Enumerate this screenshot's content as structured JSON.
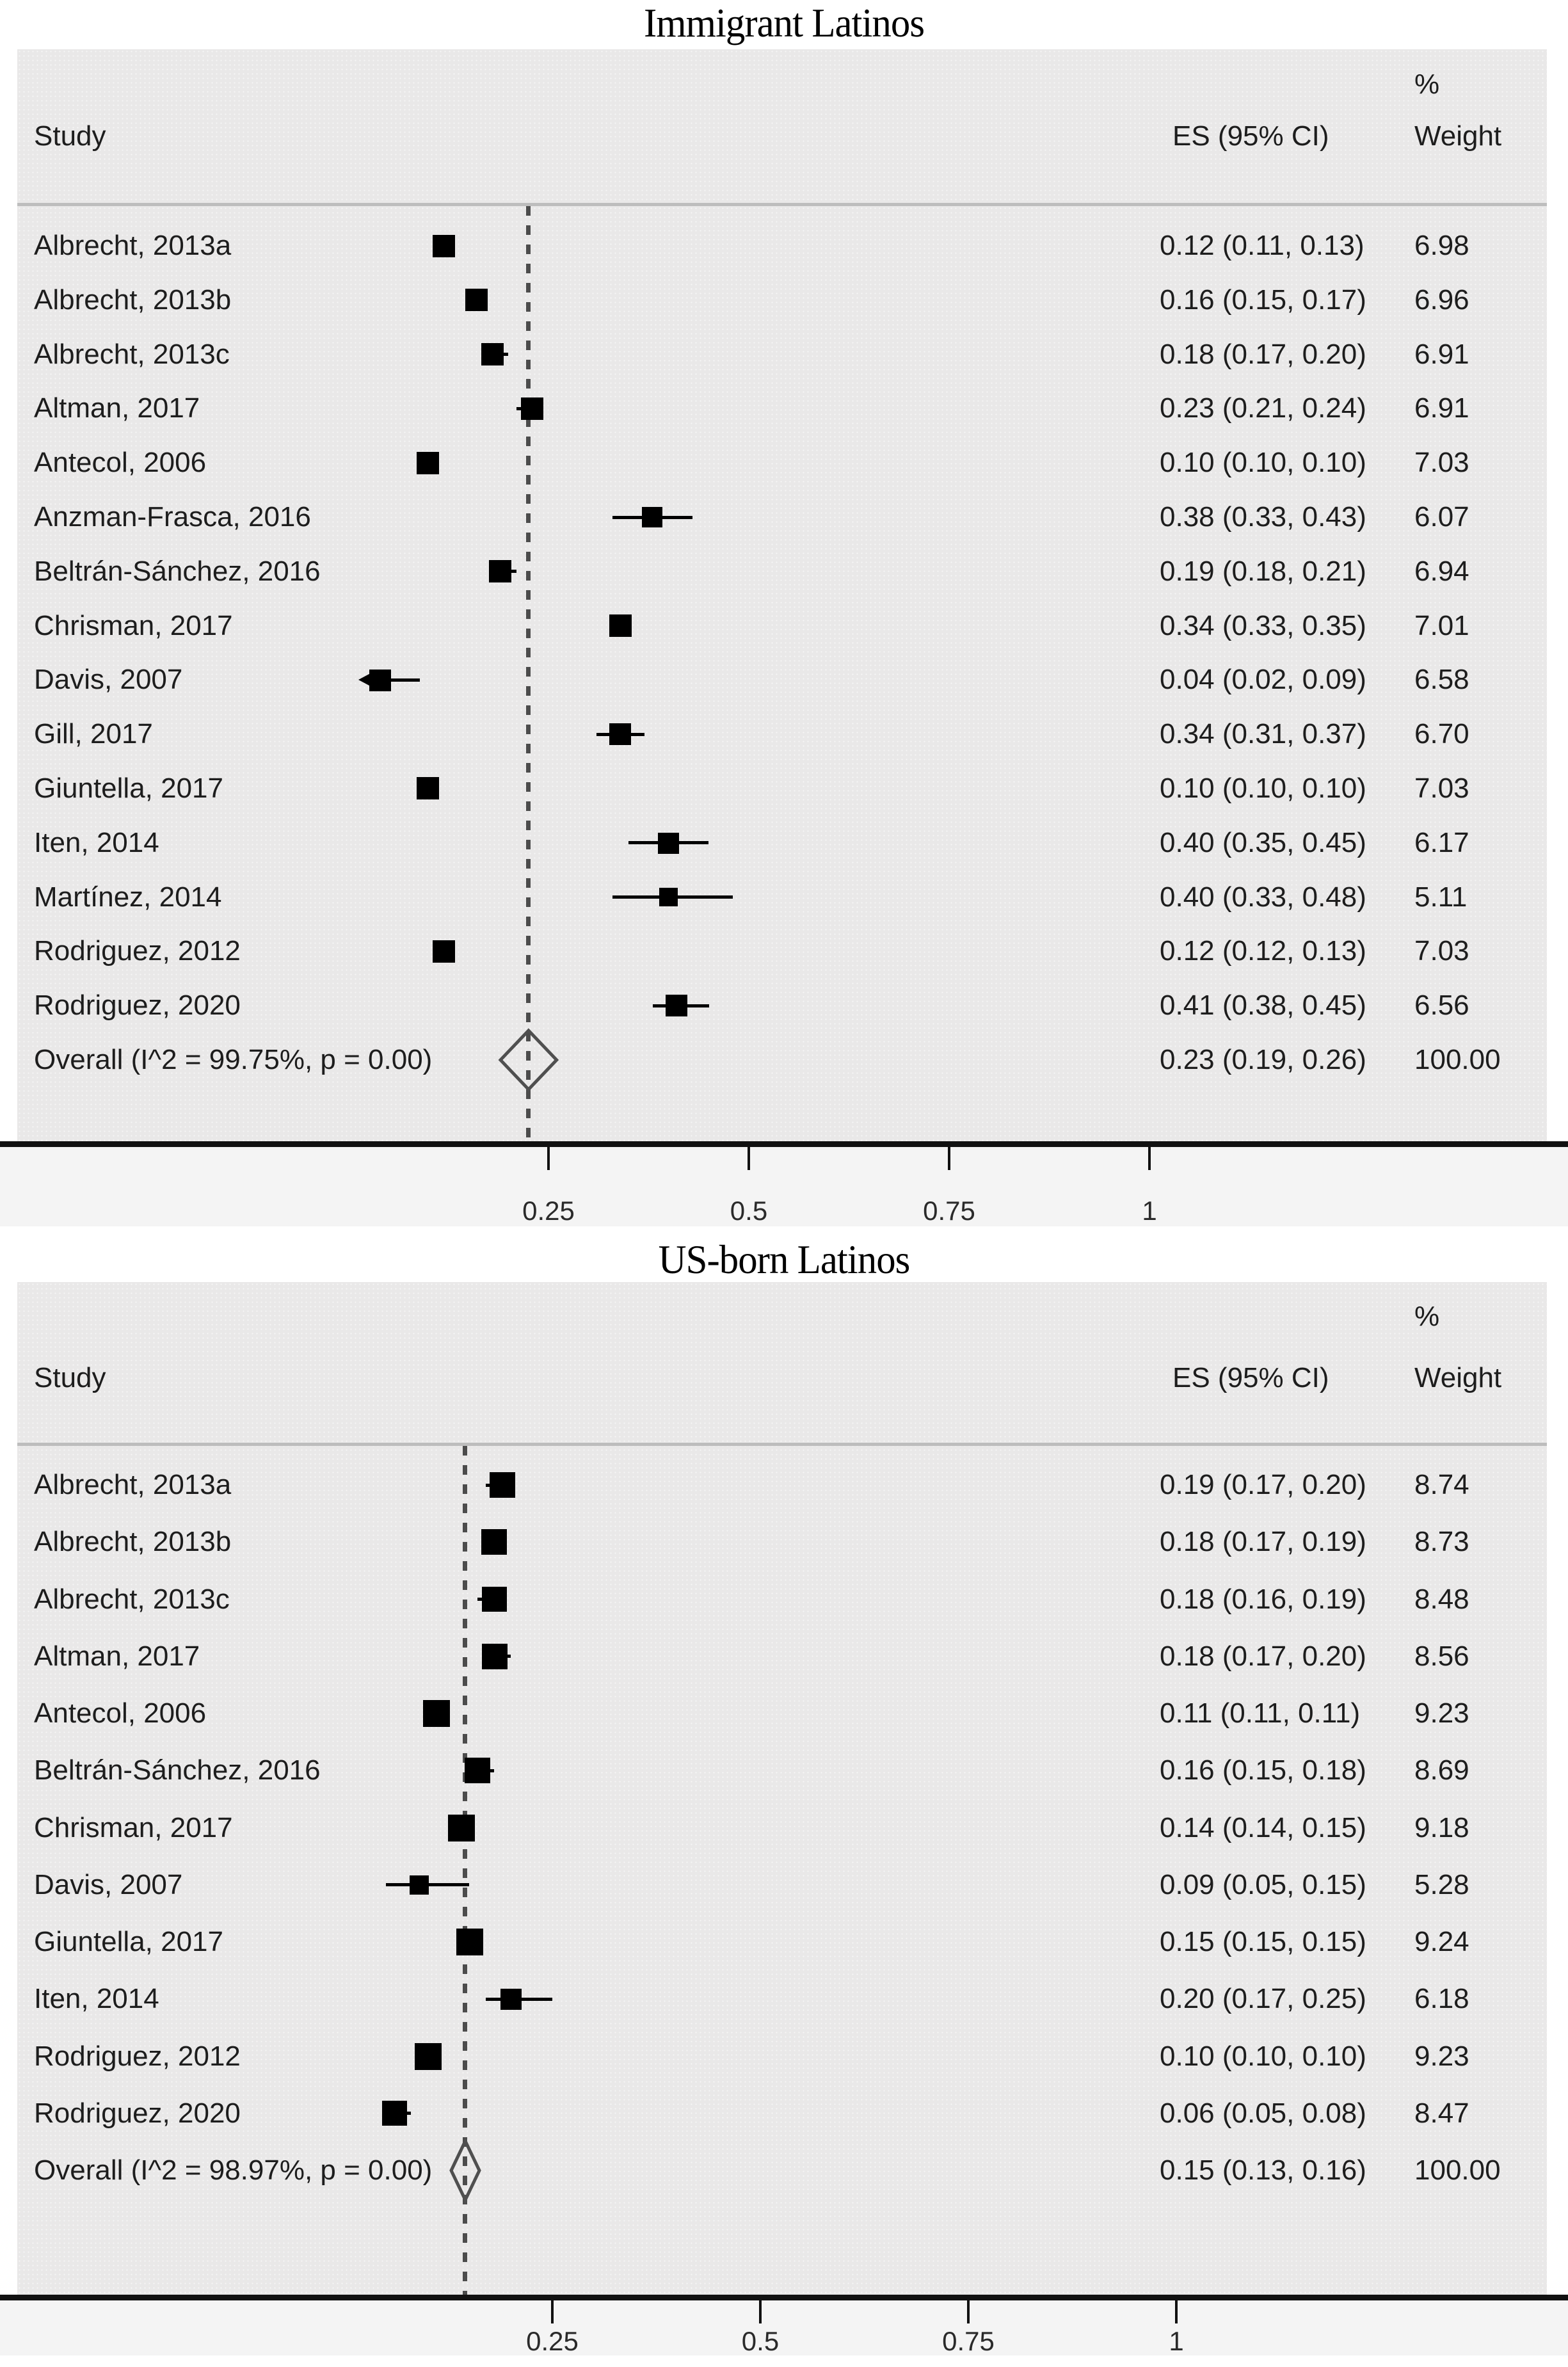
{
  "colors": {
    "marker": "#000000",
    "ci_line": "#000000",
    "diamond_stroke": "#4f4f4f",
    "null_line": "#4c4c4c",
    "panel_background": "#e9e8e8",
    "separator": "#bdbdbd",
    "axis": "#111111",
    "tick_strip": "#f4f4f4",
    "text": "#1d1d1d"
  },
  "chart_data": [
    {
      "type": "forest",
      "title": "Immigrant Latinos",
      "columns": {
        "study": "Study",
        "percent": "%",
        "weight": "Weight",
        "es": "ES (95% CI)"
      },
      "x_ticks": [
        {
          "value": 0.25,
          "label": "0.25"
        },
        {
          "value": 0.5,
          "label": "0.5"
        },
        {
          "value": 0.75,
          "label": "0.75"
        },
        {
          "value": 1,
          "label": "1"
        }
      ],
      "studies": [
        {
          "label": "Albrecht, 2013a",
          "es": 0.12,
          "ci_low": 0.11,
          "ci_high": 0.13,
          "weight": 6.98,
          "es_label": "0.12 (0.11, 0.13)",
          "weight_label": "6.98"
        },
        {
          "label": "Albrecht, 2013b",
          "es": 0.16,
          "ci_low": 0.15,
          "ci_high": 0.17,
          "weight": 6.96,
          "es_label": "0.16 (0.15, 0.17)",
          "weight_label": "6.96"
        },
        {
          "label": "Albrecht, 2013c",
          "es": 0.18,
          "ci_low": 0.17,
          "ci_high": 0.2,
          "weight": 6.91,
          "es_label": "0.18 (0.17, 0.20)",
          "weight_label": "6.91"
        },
        {
          "label": "Altman, 2017",
          "es": 0.23,
          "ci_low": 0.21,
          "ci_high": 0.24,
          "weight": 6.91,
          "es_label": "0.23 (0.21, 0.24)",
          "weight_label": "6.91"
        },
        {
          "label": "Antecol, 2006",
          "es": 0.1,
          "ci_low": 0.1,
          "ci_high": 0.1,
          "weight": 7.03,
          "es_label": "0.10 (0.10, 0.10)",
          "weight_label": "7.03"
        },
        {
          "label": "Anzman-Frasca, 2016",
          "es": 0.38,
          "ci_low": 0.33,
          "ci_high": 0.43,
          "weight": 6.07,
          "es_label": "0.38 (0.33, 0.43)",
          "weight_label": "6.07"
        },
        {
          "label": "Beltrán-Sánchez, 2016",
          "es": 0.19,
          "ci_low": 0.18,
          "ci_high": 0.21,
          "weight": 6.94,
          "es_label": "0.19 (0.18, 0.21)",
          "weight_label": "6.94"
        },
        {
          "label": "Chrisman, 2017",
          "es": 0.34,
          "ci_low": 0.33,
          "ci_high": 0.35,
          "weight": 7.01,
          "es_label": "0.34 (0.33, 0.35)",
          "weight_label": "7.01"
        },
        {
          "label": "Davis, 2007",
          "es": 0.04,
          "ci_low": 0.02,
          "ci_high": 0.09,
          "weight": 6.58,
          "es_label": "0.04 (0.02, 0.09)",
          "weight_label": "6.58",
          "arrow_left": true
        },
        {
          "label": "Gill, 2017",
          "es": 0.34,
          "ci_low": 0.31,
          "ci_high": 0.37,
          "weight": 6.7,
          "es_label": "0.34 (0.31, 0.37)",
          "weight_label": "6.70"
        },
        {
          "label": "Giuntella, 2017",
          "es": 0.1,
          "ci_low": 0.1,
          "ci_high": 0.1,
          "weight": 7.03,
          "es_label": "0.10 (0.10, 0.10)",
          "weight_label": "7.03"
        },
        {
          "label": "Iten, 2014",
          "es": 0.4,
          "ci_low": 0.35,
          "ci_high": 0.45,
          "weight": 6.17,
          "es_label": "0.40 (0.35, 0.45)",
          "weight_label": "6.17"
        },
        {
          "label": "Martínez, 2014",
          "es": 0.4,
          "ci_low": 0.33,
          "ci_high": 0.48,
          "weight": 5.11,
          "es_label": "0.40 (0.33, 0.48)",
          "weight_label": "5.11"
        },
        {
          "label": "Rodriguez, 2012",
          "es": 0.12,
          "ci_low": 0.12,
          "ci_high": 0.13,
          "weight": 7.03,
          "es_label": "0.12 (0.12, 0.13)",
          "weight_label": "7.03"
        },
        {
          "label": "Rodriguez, 2020",
          "es": 0.41,
          "ci_low": 0.38,
          "ci_high": 0.45,
          "weight": 6.56,
          "es_label": "0.41 (0.38, 0.45)",
          "weight_label": "6.56"
        }
      ],
      "overall": {
        "label": "Overall  (I^2 = 99.75%, p = 0.00)",
        "es": 0.23,
        "ci_low": 0.19,
        "ci_high": 0.26,
        "weight": 100.0,
        "es_label": "0.23 (0.19, 0.26)",
        "weight_label": "100.00"
      }
    },
    {
      "type": "forest",
      "title": "US-born Latinos",
      "columns": {
        "study": "Study",
        "percent": "%",
        "weight": "Weight",
        "es": "ES (95% CI)"
      },
      "x_ticks": [
        {
          "value": 0.25,
          "label": "0.25"
        },
        {
          "value": 0.5,
          "label": "0.5"
        },
        {
          "value": 0.75,
          "label": "0.75"
        },
        {
          "value": 1,
          "label": "1"
        }
      ],
      "studies": [
        {
          "label": "Albrecht, 2013a",
          "es": 0.19,
          "ci_low": 0.17,
          "ci_high": 0.2,
          "weight": 8.74,
          "es_label": "0.19 (0.17, 0.20)",
          "weight_label": "8.74"
        },
        {
          "label": "Albrecht, 2013b",
          "es": 0.18,
          "ci_low": 0.17,
          "ci_high": 0.19,
          "weight": 8.73,
          "es_label": "0.18 (0.17, 0.19)",
          "weight_label": "8.73"
        },
        {
          "label": "Albrecht, 2013c",
          "es": 0.18,
          "ci_low": 0.16,
          "ci_high": 0.19,
          "weight": 8.48,
          "es_label": "0.18 (0.16, 0.19)",
          "weight_label": "8.48"
        },
        {
          "label": "Altman, 2017",
          "es": 0.18,
          "ci_low": 0.17,
          "ci_high": 0.2,
          "weight": 8.56,
          "es_label": "0.18 (0.17, 0.20)",
          "weight_label": "8.56"
        },
        {
          "label": "Antecol, 2006",
          "es": 0.11,
          "ci_low": 0.11,
          "ci_high": 0.11,
          "weight": 9.23,
          "es_label": "0.11 (0.11, 0.11)",
          "weight_label": "9.23"
        },
        {
          "label": "Beltrán-Sánchez, 2016",
          "es": 0.16,
          "ci_low": 0.15,
          "ci_high": 0.18,
          "weight": 8.69,
          "es_label": "0.16 (0.15, 0.18)",
          "weight_label": "8.69"
        },
        {
          "label": "Chrisman, 2017",
          "es": 0.14,
          "ci_low": 0.14,
          "ci_high": 0.15,
          "weight": 9.18,
          "es_label": "0.14 (0.14, 0.15)",
          "weight_label": "9.18"
        },
        {
          "label": "Davis, 2007",
          "es": 0.09,
          "ci_low": 0.05,
          "ci_high": 0.15,
          "weight": 5.28,
          "es_label": "0.09 (0.05, 0.15)",
          "weight_label": "5.28"
        },
        {
          "label": "Giuntella, 2017",
          "es": 0.15,
          "ci_low": 0.15,
          "ci_high": 0.15,
          "weight": 9.24,
          "es_label": "0.15 (0.15, 0.15)",
          "weight_label": "9.24"
        },
        {
          "label": "Iten, 2014",
          "es": 0.2,
          "ci_low": 0.17,
          "ci_high": 0.25,
          "weight": 6.18,
          "es_label": "0.20 (0.17, 0.25)",
          "weight_label": "6.18"
        },
        {
          "label": "Rodriguez, 2012",
          "es": 0.1,
          "ci_low": 0.1,
          "ci_high": 0.1,
          "weight": 9.23,
          "es_label": "0.10 (0.10, 0.10)",
          "weight_label": "9.23"
        },
        {
          "label": "Rodriguez, 2020",
          "es": 0.06,
          "ci_low": 0.05,
          "ci_high": 0.08,
          "weight": 8.47,
          "es_label": "0.06 (0.05, 0.08)",
          "weight_label": "8.47"
        }
      ],
      "overall": {
        "label": "Overall  (I^2 = 98.97%, p = 0.00)",
        "es": 0.15,
        "ci_low": 0.13,
        "ci_high": 0.16,
        "weight": 100.0,
        "es_label": "0.15 (0.13, 0.16)",
        "weight_label": "100.00"
      }
    }
  ]
}
